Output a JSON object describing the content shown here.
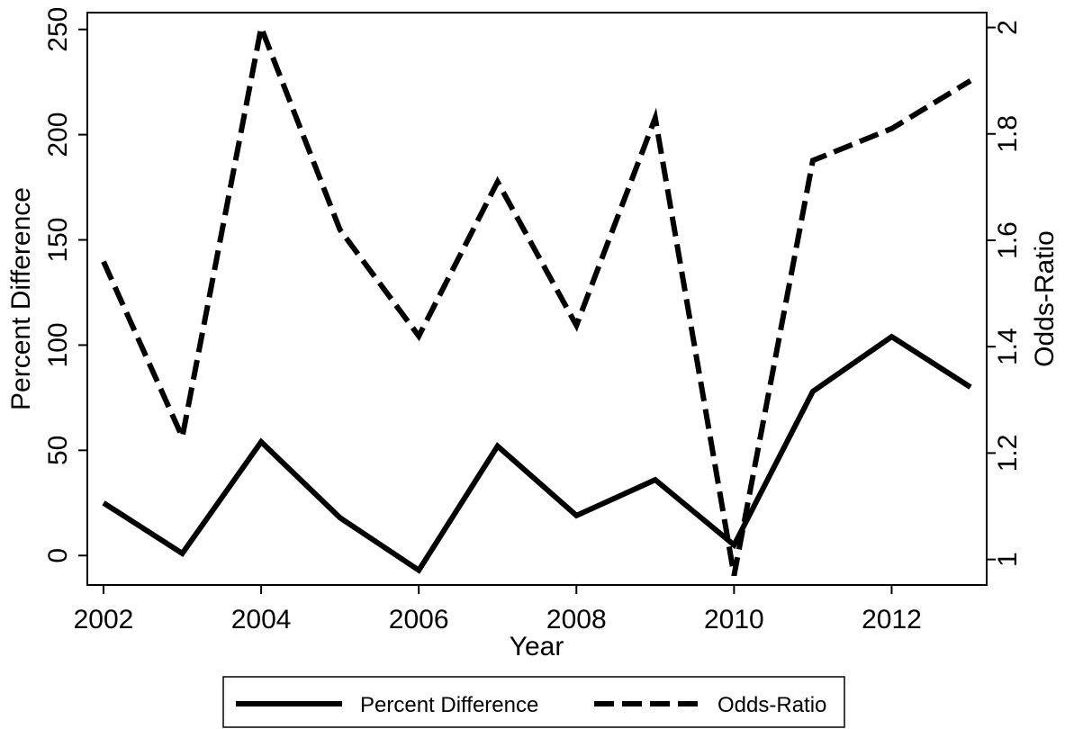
{
  "chart_data": {
    "type": "line",
    "title": "",
    "xlabel": "Year",
    "ylabel_left": "Percent Difference",
    "ylabel_right": "Odds-Ratio",
    "x": [
      2002,
      2003,
      2004,
      2005,
      2006,
      2007,
      2008,
      2009,
      2010,
      2011,
      2012,
      2013
    ],
    "x_ticks": [
      2002,
      2004,
      2006,
      2008,
      2010,
      2012
    ],
    "y_left_ticks": [
      0,
      50,
      100,
      150,
      200,
      250
    ],
    "y_right_ticks": [
      1,
      1.2,
      1.4,
      1.6,
      1.8,
      2
    ],
    "y_right_tick_labels": [
      "1",
      "1.2",
      "1.4",
      "1.6",
      "1.8",
      "2"
    ],
    "xlim": [
      2002,
      2013
    ],
    "ylim_left": [
      -14,
      258
    ],
    "ylim_right": [
      0.952,
      2.028
    ],
    "grid": false,
    "legend_placement": "bottom",
    "series": [
      {
        "name": "Percent Difference",
        "axis": "left",
        "style": "solid",
        "color": "#000000",
        "values": [
          25,
          1,
          54,
          18,
          -7,
          52,
          19,
          36,
          5,
          78,
          104,
          80
        ]
      },
      {
        "name": "Odds-Ratio",
        "axis": "right",
        "style": "dashed",
        "color": "#000000",
        "values": [
          1.56,
          1.23,
          2.0,
          1.62,
          1.42,
          1.71,
          1.44,
          1.83,
          0.97,
          1.75,
          1.81,
          1.9
        ]
      }
    ]
  }
}
